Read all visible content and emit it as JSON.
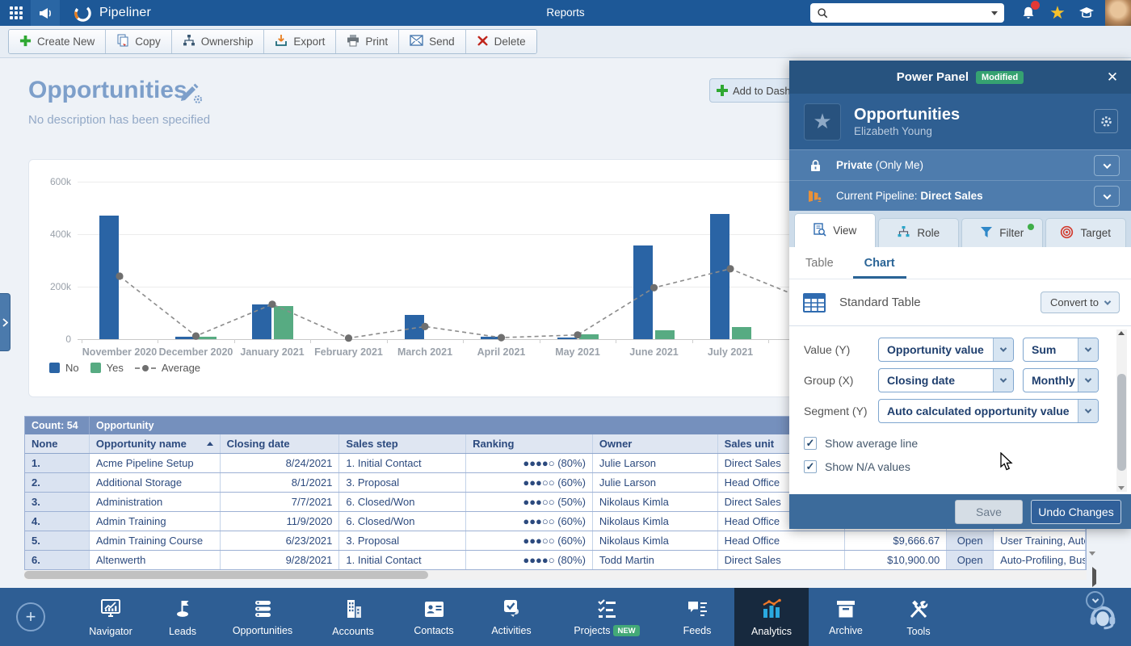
{
  "topbar": {
    "app_name": "Pipeliner",
    "page_title": "Reports",
    "search_value": ""
  },
  "toolbar": {
    "buttons": [
      {
        "label": "Create New",
        "icon": "create-new-icon"
      },
      {
        "label": "Copy",
        "icon": "copy-icon"
      },
      {
        "label": "Ownership",
        "icon": "ownership-icon"
      },
      {
        "label": "Export",
        "icon": "export-icon"
      },
      {
        "label": "Print",
        "icon": "print-icon"
      },
      {
        "label": "Send",
        "icon": "send-icon"
      },
      {
        "label": "Delete",
        "icon": "delete-icon"
      }
    ]
  },
  "page": {
    "title": "Opportunities",
    "description": "No description has been specified",
    "add_to_dashboard_label": "Add to Dashboard"
  },
  "chart_data": {
    "type": "bar",
    "title": "",
    "categories": [
      "November 2020",
      "December 2020",
      "January 2021",
      "February 2021",
      "March 2021",
      "April 2021",
      "May 2021",
      "June 2021",
      "July 2021"
    ],
    "series": [
      {
        "name": "No",
        "color": "#2a64a5",
        "values": [
          470000,
          8000,
          133000,
          0,
          93000,
          10000,
          7000,
          358000,
          478000
        ]
      },
      {
        "name": "Yes",
        "color": "#57ab82",
        "values": [
          0,
          8000,
          127000,
          0,
          0,
          0,
          18000,
          33000,
          47000
        ]
      }
    ],
    "average_line": {
      "name": "Average",
      "color": "#8c8c8c",
      "marker_color": "#6f6f6f",
      "values": [
        240000,
        12000,
        133000,
        4000,
        48000,
        6000,
        16000,
        196000,
        268000
      ],
      "clipped_next_value": 150000
    },
    "ylim": [
      0,
      600000
    ],
    "yticks": [
      "600k",
      "400k",
      "200k",
      "0"
    ],
    "xlabel": "",
    "ylabel": "",
    "grid": true,
    "legend_position": "bottom-left"
  },
  "table": {
    "count_label": "Count: 54",
    "group_header": "Opportunity",
    "columns": [
      "None",
      "Opportunity name",
      "Closing date",
      "Sales step",
      "Ranking",
      "Owner",
      "Sales unit",
      "",
      "",
      ""
    ],
    "sorted_column": "Opportunity name",
    "rows": [
      {
        "num": "1.",
        "name": "Acme Pipeline Setup",
        "closing": "8/24/2021",
        "step": "1. Initial Contact",
        "ranking": "●●●●○ (80%)",
        "owner": "Julie Larson",
        "unit": "Direct Sales",
        "value": "",
        "status": "",
        "products": ""
      },
      {
        "num": "2.",
        "name": "Additional Storage",
        "closing": "8/1/2021",
        "step": "3. Proposal",
        "ranking": "●●●○○ (60%)",
        "owner": "Julie Larson",
        "unit": "Head Office",
        "value": "",
        "status": "",
        "products": ""
      },
      {
        "num": "3.",
        "name": "Administration",
        "closing": "7/7/2021",
        "step": "6. Closed/Won",
        "ranking": "●●●○○ (50%)",
        "owner": "Nikolaus Kimla",
        "unit": "Direct Sales",
        "value": "",
        "status": "",
        "products": ""
      },
      {
        "num": "4.",
        "name": "Admin Training",
        "closing": "11/9/2020",
        "step": "6. Closed/Won",
        "ranking": "●●●○○ (60%)",
        "owner": "Nikolaus Kimla",
        "unit": "Head Office",
        "value": "",
        "status": "",
        "products": ""
      },
      {
        "num": "5.",
        "name": "Admin Training Course",
        "closing": "6/23/2021",
        "step": "3. Proposal",
        "ranking": "●●●○○ (60%)",
        "owner": "Nikolaus Kimla",
        "unit": "Head Office",
        "value": "$9,666.67",
        "status": "Open",
        "products": "User Training, Auto-Pr"
      },
      {
        "num": "6.",
        "name": "Altenwerth",
        "closing": "9/28/2021",
        "step": "1. Initial Contact",
        "ranking": "●●●●○ (80%)",
        "owner": "Todd Martin",
        "unit": "Direct Sales",
        "value": "$10,900.00",
        "status": "Open",
        "products": "Auto-Profiling, Busines"
      }
    ]
  },
  "power_panel": {
    "title": "Power Panel",
    "badge": "Modified",
    "profile": {
      "title": "Opportunities",
      "owner": "Elizabeth Young"
    },
    "privacy_bold": "Private",
    "privacy_rest": " (Only Me)",
    "pipeline_prefix": "Current Pipeline: ",
    "pipeline_bold": "Direct Sales",
    "tabs": [
      {
        "label": "View",
        "icon": "view-icon",
        "active": true,
        "dot": false
      },
      {
        "label": "Role",
        "icon": "role-icon",
        "active": false,
        "dot": false
      },
      {
        "label": "Filter",
        "icon": "filter-icon",
        "active": false,
        "dot": true
      },
      {
        "label": "Target",
        "icon": "target-icon",
        "active": false,
        "dot": false
      }
    ],
    "subtabs": [
      {
        "label": "Table",
        "active": false
      },
      {
        "label": "Chart",
        "active": true
      }
    ],
    "table_type_label": "Standard Table",
    "convert_label": "Convert to",
    "form": {
      "value_label": "Value (Y)",
      "value_field": "Opportunity value",
      "value_agg": "Sum",
      "group_label": "Group (X)",
      "group_field": "Closing date",
      "group_interval": "Monthly",
      "segment_label": "Segment (Y)",
      "segment_field": "Auto calculated opportunity value",
      "checkboxes": [
        {
          "label": "Show average line",
          "checked": true
        },
        {
          "label": "Show N/A values",
          "checked": true
        }
      ]
    },
    "footer": {
      "save": "Save",
      "undo": "Undo Changes"
    }
  },
  "bottom_nav": {
    "items": [
      {
        "label": "Navigator",
        "icon": "navigator-icon",
        "active": false,
        "badge": ""
      },
      {
        "label": "Leads",
        "icon": "leads-icon",
        "active": false,
        "badge": ""
      },
      {
        "label": "Opportunities",
        "icon": "opportunities-icon",
        "active": false,
        "badge": ""
      },
      {
        "label": "Accounts",
        "icon": "accounts-icon",
        "active": false,
        "badge": ""
      },
      {
        "label": "Contacts",
        "icon": "contacts-icon",
        "active": false,
        "badge": ""
      },
      {
        "label": "Activities",
        "icon": "activities-icon",
        "active": false,
        "badge": ""
      },
      {
        "label": "Projects",
        "icon": "projects-icon",
        "active": false,
        "badge": "NEW"
      },
      {
        "label": "Feeds",
        "icon": "feeds-icon",
        "active": false,
        "badge": ""
      },
      {
        "label": "Analytics",
        "icon": "analytics-icon",
        "active": true,
        "badge": ""
      },
      {
        "label": "Archive",
        "icon": "archive-icon",
        "active": false,
        "badge": ""
      },
      {
        "label": "Tools",
        "icon": "tools-icon",
        "active": false,
        "badge": ""
      }
    ]
  },
  "colors": {
    "topbar": "#1d5897",
    "panel_header": "#27537f",
    "panel_row": "#4e7cad",
    "modified_badge": "#36a271",
    "bar_no": "#2a64a5",
    "bar_yes": "#57ab82",
    "average_line": "#8c8c8c",
    "active_nav_bg": "#17293e",
    "table_header": "#7590bd",
    "analytics_icon_bar": "#2aa9e0",
    "analytics_icon_line": "#f07828"
  }
}
